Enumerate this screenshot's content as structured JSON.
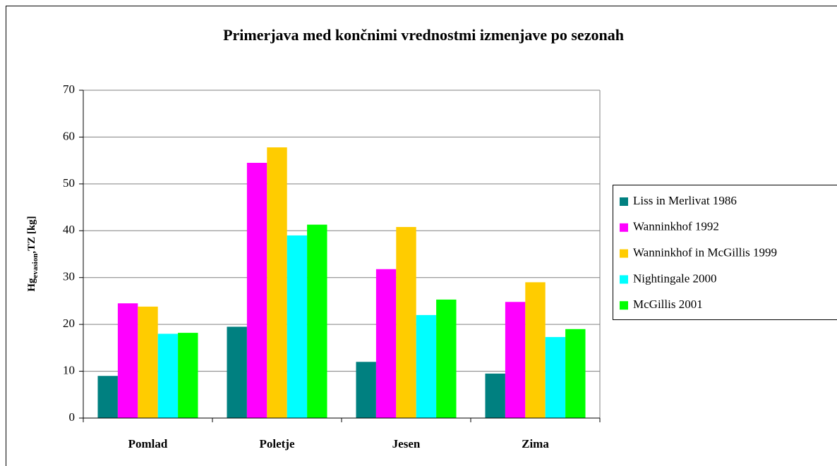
{
  "chart_data": {
    "type": "bar",
    "title": "Primerjava med končnimi vrednostmi izmenjave po sezonah",
    "y_label": {
      "main": "Hg",
      "sub": "evasion",
      "rest": ",TZ [kg]"
    },
    "categories": [
      "Pomlad",
      "Poletje",
      "Jesen",
      "Zima"
    ],
    "series": [
      {
        "name": "Liss in Merlivat 1986",
        "color": "#008080",
        "values": [
          9,
          19.5,
          12,
          9.5
        ]
      },
      {
        "name": "Wanninkhof 1992",
        "color": "#ff00ff",
        "values": [
          24.5,
          54.5,
          31.8,
          24.8
        ]
      },
      {
        "name": "Wanninkhof in McGillis 1999",
        "color": "#ffcc00",
        "values": [
          23.8,
          57.8,
          40.8,
          29
        ]
      },
      {
        "name": "Nightingale 2000",
        "color": "#00ffff",
        "values": [
          18,
          39,
          22,
          17.3
        ]
      },
      {
        "name": "McGillis 2001",
        "color": "#00ff00",
        "values": [
          18.2,
          41.3,
          25.3,
          19
        ]
      }
    ],
    "ylim": [
      0,
      70
    ],
    "yticks": [
      0,
      10,
      20,
      30,
      40,
      50,
      60,
      70
    ],
    "grid": true,
    "legend": "right"
  }
}
